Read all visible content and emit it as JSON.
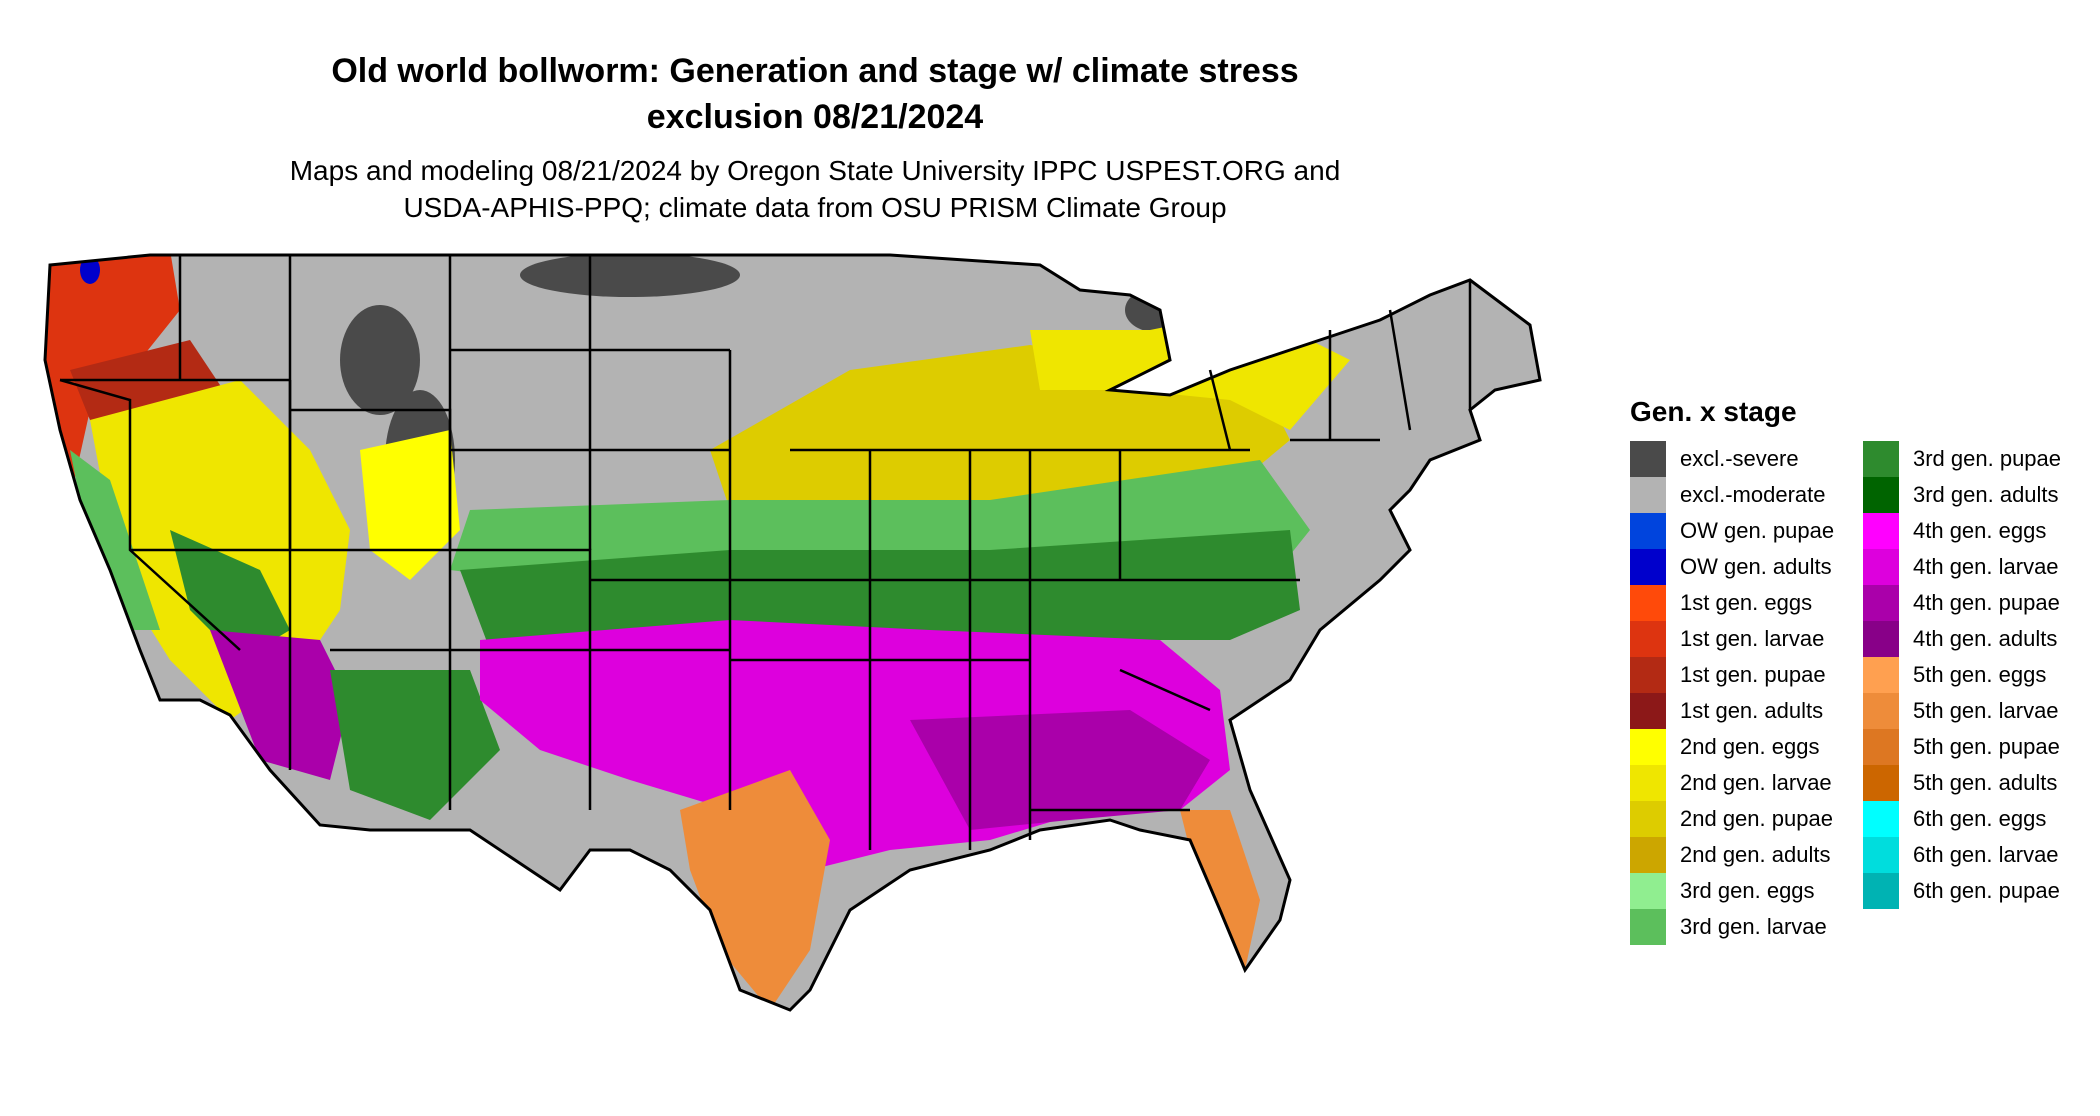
{
  "title_line1": "Old world bollworm: Generation and stage w/ climate stress",
  "title_line2": "exclusion 08/21/2024",
  "subtitle_line1": "Maps and modeling 08/21/2024 by Oregon State University IPPC USPEST.ORG and",
  "subtitle_line2": "USDA-APHIS-PPQ; climate data from OSU PRISM Climate Group",
  "legend": {
    "title": "Gen. x stage",
    "col1": [
      {
        "label": "excl.-severe",
        "color": "#4a4a4a"
      },
      {
        "label": "excl.-moderate",
        "color": "#b3b3b3"
      },
      {
        "label": "OW gen. pupae",
        "color": "#0044dd"
      },
      {
        "label": "OW gen. adults",
        "color": "#0000cc"
      },
      {
        "label": "1st gen. eggs",
        "color": "#ff4a0a"
      },
      {
        "label": "1st gen. larvae",
        "color": "#dd3410"
      },
      {
        "label": "1st gen. pupae",
        "color": "#b32a14"
      },
      {
        "label": "1st gen. adults",
        "color": "#8c1818"
      },
      {
        "label": "2nd gen. eggs",
        "color": "#ffff00"
      },
      {
        "label": "2nd gen. larvae",
        "color": "#efe600"
      },
      {
        "label": "2nd gen. pupae",
        "color": "#ddcc00"
      },
      {
        "label": "2nd gen. adults",
        "color": "#cca600"
      },
      {
        "label": "3rd gen. eggs",
        "color": "#90ee90"
      },
      {
        "label": "3rd gen. larvae",
        "color": "#5cbf5c"
      }
    ],
    "col2": [
      {
        "label": "3rd gen. pupae",
        "color": "#2e8b2e"
      },
      {
        "label": "3rd gen. adults",
        "color": "#006400"
      },
      {
        "label": "4th gen. eggs",
        "color": "#ff00ff"
      },
      {
        "label": "4th gen. larvae",
        "color": "#dd00dd"
      },
      {
        "label": "4th gen. pupae",
        "color": "#aa00aa"
      },
      {
        "label": "4th gen. adults",
        "color": "#880088"
      },
      {
        "label": "5th gen. eggs",
        "color": "#ffa050"
      },
      {
        "label": "5th gen. larvae",
        "color": "#ee8c3a"
      },
      {
        "label": "5th gen. pupae",
        "color": "#dd7722"
      },
      {
        "label": "5th gen. adults",
        "color": "#cc6600"
      },
      {
        "label": "6th gen. eggs",
        "color": "#00ffff"
      },
      {
        "label": "6th gen. larvae",
        "color": "#00dddd"
      },
      {
        "label": "6th gen. pupae",
        "color": "#00b3b3"
      }
    ]
  }
}
